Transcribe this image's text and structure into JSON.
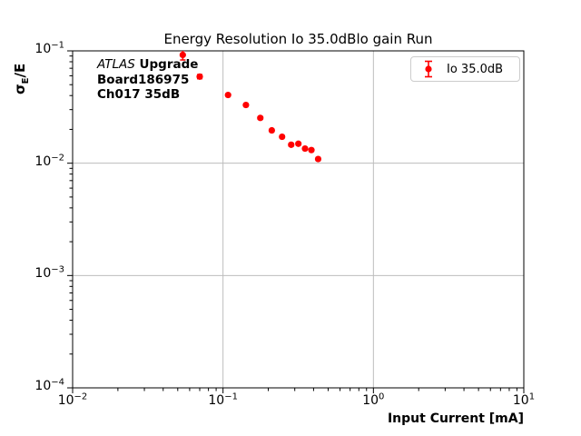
{
  "title": "Energy Resolution Io 35.0dBlo gain Run",
  "annotation": {
    "experiment": "ATLAS",
    "upgrade": " Upgrade",
    "board": "Board186975",
    "channel": "Ch017 35dB"
  },
  "axes": {
    "xlabel": "Input Current [mA]",
    "ylabel": {
      "sigma": "σ",
      "sub": "E",
      "rest": "/E"
    },
    "tick_base": "10",
    "x_tick_exps": [
      "−2",
      "−1",
      "0",
      "1"
    ],
    "y_tick_exps": [
      "−1",
      "−2",
      "−3",
      "−4"
    ]
  },
  "legend": {
    "label": "Io 35.0dB"
  },
  "colors": {
    "marker": "#ff0000",
    "grid": "#bdbdbd",
    "spine": "#000000",
    "legend_border": "#cccccc"
  },
  "chart_data": {
    "type": "scatter",
    "title": "Energy Resolution Io 35.0dBlo gain Run",
    "xlabel": "Input Current [mA]",
    "ylabel": "sigma_E/E",
    "xscale": "log",
    "yscale": "log",
    "xlim": [
      0.01,
      10
    ],
    "ylim": [
      0.0001,
      0.1
    ],
    "grid": true,
    "legend_position": "upper right",
    "x_major_values": [
      0.01,
      0.1,
      1,
      10
    ],
    "y_major_values": [
      0.1,
      0.01,
      0.001,
      0.0001
    ],
    "series": [
      {
        "name": "Io 35.0dB",
        "color": "#ff0000",
        "marker": "circle-errorbar",
        "x": [
          0.054,
          0.07,
          0.108,
          0.142,
          0.177,
          0.211,
          0.247,
          0.284,
          0.317,
          0.351,
          0.387,
          0.429
        ],
        "y": [
          0.092,
          0.059,
          0.0405,
          0.033,
          0.0253,
          0.0196,
          0.0172,
          0.0146,
          0.0149,
          0.0135,
          0.0131,
          0.0109
        ],
        "yerr": [
          0.009,
          0.0025,
          0.0008,
          0.0007,
          0.0006,
          0.0005,
          0.0004,
          0.0004,
          0.0004,
          0.0003,
          0.0003,
          0.0003
        ]
      }
    ]
  }
}
